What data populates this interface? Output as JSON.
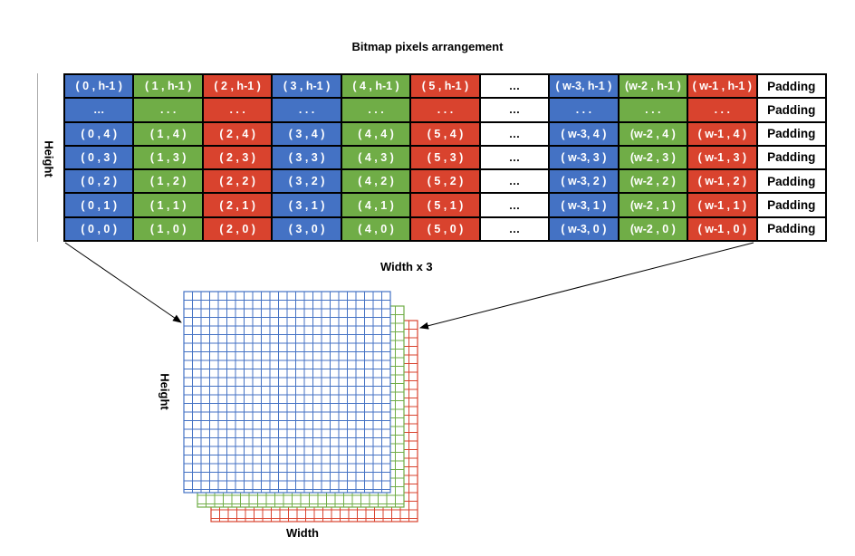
{
  "title": "Bitmap pixels arrangement",
  "labels": {
    "height_top": "Height",
    "width_top": "Width x 3",
    "height_bottom": "Height",
    "width_bottom": "Width"
  },
  "colors": {
    "blue": "#4472c4",
    "green": "#70ad47",
    "red": "#d9432e"
  },
  "rows": [
    [
      "( 0 , h-1 )",
      "( 1 , h-1 )",
      "( 2 , h-1 )",
      "( 3 , h-1 )",
      "( 4 , h-1 )",
      "( 5 , h-1 )",
      "…",
      "( w-3, h-1 )",
      "(w-2 , h-1 )",
      "( w-1 , h-1 )",
      "Padding"
    ],
    [
      "…",
      ". . .",
      ". . .",
      ". . .",
      ". . .",
      ". . .",
      "…",
      ". . .",
      ". . .",
      ". . .",
      "Padding"
    ],
    [
      "( 0 , 4 )",
      "( 1 , 4 )",
      "( 2 , 4 )",
      "( 3 , 4 )",
      "( 4 , 4 )",
      "( 5 , 4 )",
      "…",
      "( w-3, 4 )",
      "(w-2 , 4 )",
      "( w-1 , 4 )",
      "Padding"
    ],
    [
      "( 0 , 3 )",
      "( 1 , 3 )",
      "( 2 , 3 )",
      "( 3 , 3 )",
      "( 4 , 3 )",
      "( 5 , 3 )",
      "…",
      "( w-3, 3 )",
      "(w-2 , 3 )",
      "( w-1 , 3 )",
      "Padding"
    ],
    [
      "( 0 , 2 )",
      "( 1 , 2 )",
      "( 2 , 2 )",
      "( 3 , 2 )",
      "( 4 , 2 )",
      "( 5 , 2 )",
      "…",
      "( w-3, 2 )",
      "(w-2 , 2 )",
      "( w-1 , 2 )",
      "Padding"
    ],
    [
      "( 0 , 1 )",
      "( 1 , 1 )",
      "( 2 , 1 )",
      "( 3 , 1 )",
      "( 4 , 1 )",
      "( 5 , 1 )",
      "…",
      "( w-3, 1 )",
      "(w-2 , 1 )",
      "( w-1 , 1 )",
      "Padding"
    ],
    [
      "( 0 , 0 )",
      "( 1 , 0 )",
      "( 2 , 0 )",
      "( 3 , 0 )",
      "( 4 , 0 )",
      "( 5 , 0 )",
      "…",
      "( w-3, 0 )",
      "(w-2 , 0 )",
      "( w-1 , 0 )",
      "Padding"
    ]
  ],
  "column_colors": [
    "blue",
    "green",
    "red",
    "blue",
    "green",
    "red",
    "white",
    "blue",
    "green",
    "red",
    "padding"
  ]
}
